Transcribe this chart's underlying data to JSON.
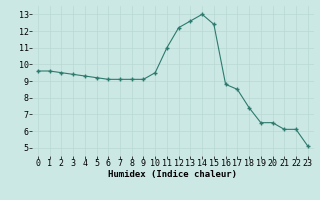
{
  "x": [
    0,
    1,
    2,
    3,
    4,
    5,
    6,
    7,
    8,
    9,
    10,
    11,
    12,
    13,
    14,
    15,
    16,
    17,
    18,
    19,
    20,
    21,
    22,
    23
  ],
  "y": [
    9.6,
    9.6,
    9.5,
    9.4,
    9.3,
    9.2,
    9.1,
    9.1,
    9.1,
    9.1,
    9.5,
    11.0,
    12.2,
    12.6,
    13.0,
    12.4,
    8.8,
    8.5,
    7.4,
    6.5,
    6.5,
    6.1,
    6.1,
    5.1
  ],
  "line_color": "#2d7a6e",
  "marker": "+",
  "marker_color": "#2d7a6e",
  "bg_color": "#cce8e4",
  "grid_color": "#b8d8d4",
  "xlabel": "Humidex (Indice chaleur)",
  "ylim": [
    4.5,
    13.5
  ],
  "xlim": [
    -0.5,
    23.5
  ],
  "yticks": [
    5,
    6,
    7,
    8,
    9,
    10,
    11,
    12,
    13
  ],
  "xticks": [
    0,
    1,
    2,
    3,
    4,
    5,
    6,
    7,
    8,
    9,
    10,
    11,
    12,
    13,
    14,
    15,
    16,
    17,
    18,
    19,
    20,
    21,
    22,
    23
  ],
  "label_fontsize": 6.5,
  "tick_fontsize": 6
}
